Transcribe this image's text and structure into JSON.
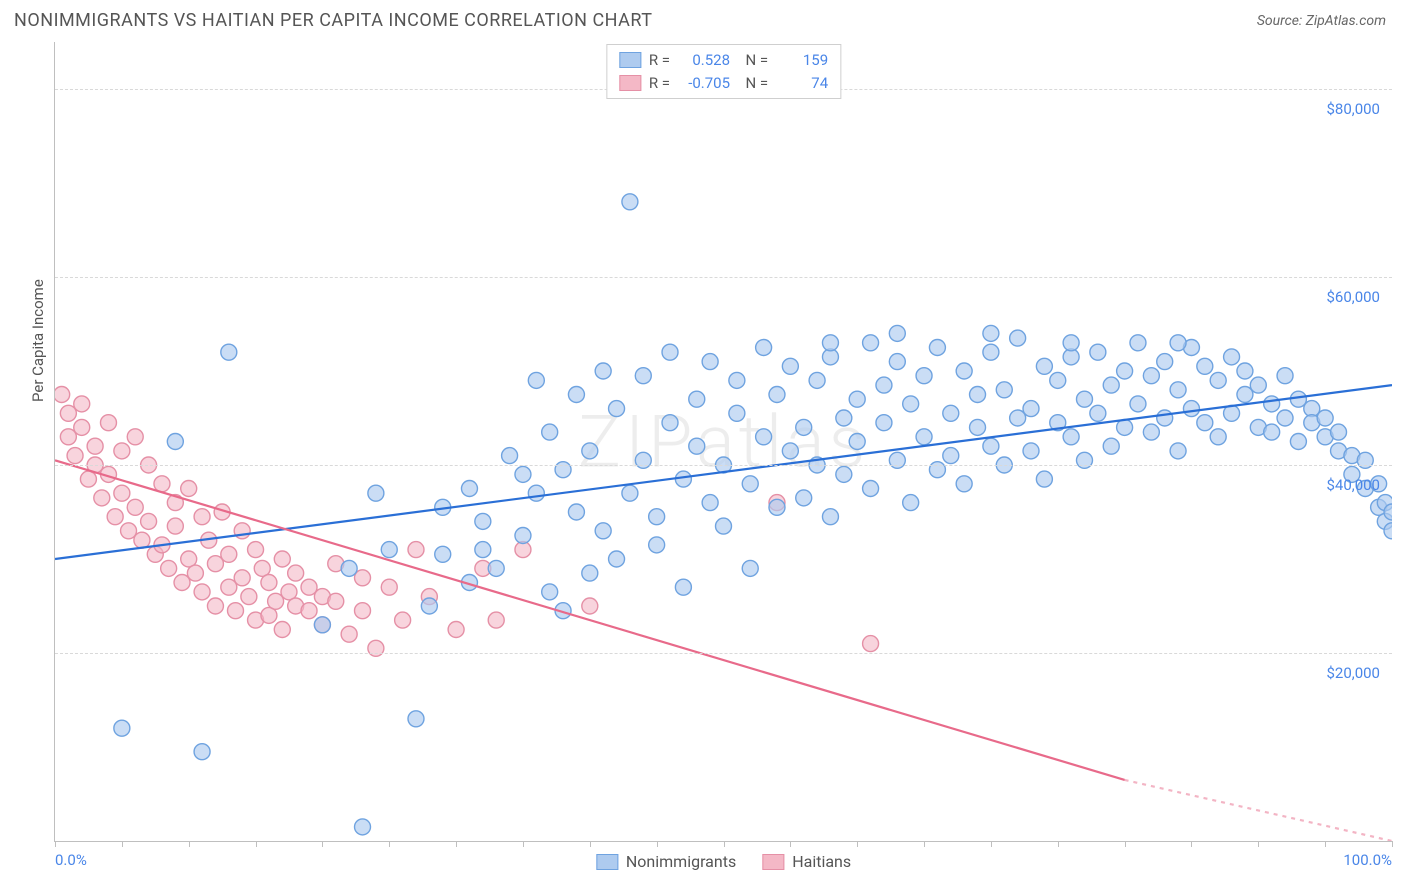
{
  "title": "NONIMMIGRANTS VS HAITIAN PER CAPITA INCOME CORRELATION CHART",
  "source_label": "Source: ZipAtlas.com",
  "watermark": "ZIPatlas",
  "ylabel": "Per Capita Income",
  "chart": {
    "type": "scatter",
    "xlim": [
      0,
      100
    ],
    "ylim": [
      0,
      85000
    ],
    "x_tick_positions": [
      0,
      5,
      10,
      15,
      20,
      25,
      30,
      35,
      40,
      45,
      50,
      55,
      60,
      65,
      70,
      75,
      80,
      85,
      90,
      95,
      100
    ],
    "x_labeled_ticks": {
      "0": "0.0%",
      "100": "100.0%"
    },
    "y_gridlines": [
      0,
      20000,
      40000,
      60000,
      80000
    ],
    "y_tick_labels": {
      "20000": "$20,000",
      "40000": "$40,000",
      "60000": "$60,000",
      "80000": "$80,000"
    },
    "grid_color": "#d9d9d9",
    "axis_color": "#bfbfbf",
    "background_color": "#ffffff",
    "marker_radius": 8,
    "marker_stroke_width": 1.4,
    "trend_line_width": 2.2,
    "series": [
      {
        "name": "Nonimmigrants",
        "fill": "#aecbef",
        "fill_opacity": 0.65,
        "stroke": "#6fa3e0",
        "line_color": "#2a6fd6",
        "R": "0.528",
        "N": "159",
        "trend": {
          "x1": 0,
          "y1": 30000,
          "x2": 100,
          "y2": 48500
        },
        "points": [
          [
            5,
            12000
          ],
          [
            11,
            9500
          ],
          [
            9,
            42500
          ],
          [
            13,
            52000
          ],
          [
            23,
            1500
          ],
          [
            20,
            23000
          ],
          [
            22,
            29000
          ],
          [
            25,
            31000
          ],
          [
            27,
            13000
          ],
          [
            29,
            35500
          ],
          [
            29,
            30500
          ],
          [
            31,
            37500
          ],
          [
            31,
            27500
          ],
          [
            32,
            34000
          ],
          [
            33,
            29000
          ],
          [
            34,
            41000
          ],
          [
            35,
            32500
          ],
          [
            36,
            49000
          ],
          [
            36,
            37000
          ],
          [
            37,
            26500
          ],
          [
            37,
            43500
          ],
          [
            38,
            24500
          ],
          [
            38,
            39500
          ],
          [
            39,
            35000
          ],
          [
            39,
            47500
          ],
          [
            40,
            28500
          ],
          [
            40,
            41500
          ],
          [
            41,
            50000
          ],
          [
            41,
            33000
          ],
          [
            42,
            46000
          ],
          [
            42,
            30000
          ],
          [
            43,
            68000
          ],
          [
            43,
            37000
          ],
          [
            44,
            49500
          ],
          [
            44,
            40500
          ],
          [
            45,
            31500
          ],
          [
            45,
            34500
          ],
          [
            46,
            44500
          ],
          [
            46,
            52000
          ],
          [
            47,
            38500
          ],
          [
            47,
            27000
          ],
          [
            48,
            42000
          ],
          [
            48,
            47000
          ],
          [
            49,
            36000
          ],
          [
            49,
            51000
          ],
          [
            50,
            40000
          ],
          [
            50,
            33500
          ],
          [
            51,
            45500
          ],
          [
            51,
            49000
          ],
          [
            52,
            38000
          ],
          [
            52,
            29000
          ],
          [
            53,
            43000
          ],
          [
            53,
            52500
          ],
          [
            54,
            35500
          ],
          [
            54,
            47500
          ],
          [
            55,
            41500
          ],
          [
            55,
            50500
          ],
          [
            56,
            36500
          ],
          [
            56,
            44000
          ],
          [
            57,
            40000
          ],
          [
            57,
            49000
          ],
          [
            58,
            51500
          ],
          [
            58,
            34500
          ],
          [
            59,
            45000
          ],
          [
            59,
            39000
          ],
          [
            60,
            47000
          ],
          [
            60,
            42500
          ],
          [
            61,
            53000
          ],
          [
            61,
            37500
          ],
          [
            62,
            48500
          ],
          [
            62,
            44500
          ],
          [
            63,
            40500
          ],
          [
            63,
            51000
          ],
          [
            64,
            36000
          ],
          [
            64,
            46500
          ],
          [
            65,
            49500
          ],
          [
            65,
            43000
          ],
          [
            66,
            39500
          ],
          [
            66,
            52500
          ],
          [
            67,
            45500
          ],
          [
            67,
            41000
          ],
          [
            68,
            50000
          ],
          [
            68,
            38000
          ],
          [
            69,
            47500
          ],
          [
            69,
            44000
          ],
          [
            70,
            42000
          ],
          [
            70,
            52000
          ],
          [
            71,
            40000
          ],
          [
            71,
            48000
          ],
          [
            72,
            53500
          ],
          [
            72,
            45000
          ],
          [
            73,
            46000
          ],
          [
            73,
            41500
          ],
          [
            74,
            50500
          ],
          [
            74,
            38500
          ],
          [
            75,
            49000
          ],
          [
            75,
            44500
          ],
          [
            76,
            43000
          ],
          [
            76,
            51500
          ],
          [
            77,
            47000
          ],
          [
            77,
            40500
          ],
          [
            78,
            52000
          ],
          [
            78,
            45500
          ],
          [
            79,
            48500
          ],
          [
            79,
            42000
          ],
          [
            80,
            50000
          ],
          [
            80,
            44000
          ],
          [
            81,
            53000
          ],
          [
            81,
            46500
          ],
          [
            82,
            49500
          ],
          [
            82,
            43500
          ],
          [
            83,
            51000
          ],
          [
            83,
            45000
          ],
          [
            84,
            48000
          ],
          [
            84,
            41500
          ],
          [
            85,
            52500
          ],
          [
            85,
            46000
          ],
          [
            86,
            50500
          ],
          [
            86,
            44500
          ],
          [
            87,
            49000
          ],
          [
            87,
            43000
          ],
          [
            88,
            51500
          ],
          [
            88,
            45500
          ],
          [
            89,
            47500
          ],
          [
            89,
            50000
          ],
          [
            90,
            44000
          ],
          [
            90,
            48500
          ],
          [
            91,
            46500
          ],
          [
            91,
            43500
          ],
          [
            92,
            49500
          ],
          [
            92,
            45000
          ],
          [
            93,
            47000
          ],
          [
            93,
            42500
          ],
          [
            94,
            46000
          ],
          [
            94,
            44500
          ],
          [
            95,
            45000
          ],
          [
            95,
            43000
          ],
          [
            96,
            43500
          ],
          [
            96,
            41500
          ],
          [
            97,
            41000
          ],
          [
            97,
            39000
          ],
          [
            98,
            40500
          ],
          [
            98,
            37500
          ],
          [
            99,
            38000
          ],
          [
            99,
            35500
          ],
          [
            99.5,
            36000
          ],
          [
            99.5,
            34000
          ],
          [
            100,
            35000
          ],
          [
            100,
            33000
          ],
          [
            58,
            53000
          ],
          [
            63,
            54000
          ],
          [
            70,
            54000
          ],
          [
            76,
            53000
          ],
          [
            84,
            53000
          ],
          [
            24,
            37000
          ],
          [
            28,
            25000
          ],
          [
            32,
            31000
          ],
          [
            35,
            39000
          ]
        ]
      },
      {
        "name": "Haitians",
        "fill": "#f4b8c6",
        "fill_opacity": 0.6,
        "stroke": "#e590a6",
        "line_color": "#e86a8a",
        "R": "-0.705",
        "N": "74",
        "trend": {
          "x1": 0,
          "y1": 40500,
          "x2": 80,
          "y2": 6500
        },
        "trend_extend": {
          "x1": 80,
          "y1": 6500,
          "x2": 100,
          "y2": 0
        },
        "points": [
          [
            0.5,
            47500
          ],
          [
            1,
            43000
          ],
          [
            1,
            45500
          ],
          [
            1.5,
            41000
          ],
          [
            2,
            44000
          ],
          [
            2,
            46500
          ],
          [
            2.5,
            38500
          ],
          [
            3,
            42000
          ],
          [
            3,
            40000
          ],
          [
            3.5,
            36500
          ],
          [
            4,
            44500
          ],
          [
            4,
            39000
          ],
          [
            4.5,
            34500
          ],
          [
            5,
            41500
          ],
          [
            5,
            37000
          ],
          [
            5.5,
            33000
          ],
          [
            6,
            43000
          ],
          [
            6,
            35500
          ],
          [
            6.5,
            32000
          ],
          [
            7,
            40000
          ],
          [
            7,
            34000
          ],
          [
            7.5,
            30500
          ],
          [
            8,
            38000
          ],
          [
            8,
            31500
          ],
          [
            8.5,
            29000
          ],
          [
            9,
            36000
          ],
          [
            9,
            33500
          ],
          [
            9.5,
            27500
          ],
          [
            10,
            37500
          ],
          [
            10,
            30000
          ],
          [
            10.5,
            28500
          ],
          [
            11,
            34500
          ],
          [
            11,
            26500
          ],
          [
            11.5,
            32000
          ],
          [
            12,
            29500
          ],
          [
            12,
            25000
          ],
          [
            12.5,
            35000
          ],
          [
            13,
            30500
          ],
          [
            13,
            27000
          ],
          [
            13.5,
            24500
          ],
          [
            14,
            33000
          ],
          [
            14,
            28000
          ],
          [
            14.5,
            26000
          ],
          [
            15,
            31000
          ],
          [
            15,
            23500
          ],
          [
            15.5,
            29000
          ],
          [
            16,
            27500
          ],
          [
            16,
            24000
          ],
          [
            16.5,
            25500
          ],
          [
            17,
            30000
          ],
          [
            17,
            22500
          ],
          [
            17.5,
            26500
          ],
          [
            18,
            28500
          ],
          [
            18,
            25000
          ],
          [
            19,
            24500
          ],
          [
            19,
            27000
          ],
          [
            20,
            26000
          ],
          [
            20,
            23000
          ],
          [
            21,
            29500
          ],
          [
            21,
            25500
          ],
          [
            22,
            22000
          ],
          [
            23,
            28000
          ],
          [
            23,
            24500
          ],
          [
            24,
            20500
          ],
          [
            25,
            27000
          ],
          [
            26,
            23500
          ],
          [
            27,
            31000
          ],
          [
            28,
            26000
          ],
          [
            30,
            22500
          ],
          [
            32,
            29000
          ],
          [
            33,
            23500
          ],
          [
            35,
            31000
          ],
          [
            40,
            25000
          ],
          [
            54,
            36000
          ],
          [
            61,
            21000
          ]
        ]
      }
    ]
  },
  "bottom_legend": [
    {
      "label": "Nonimmigrants",
      "fill": "#aecbef",
      "stroke": "#6fa3e0"
    },
    {
      "label": "Haitians",
      "fill": "#f4b8c6",
      "stroke": "#e590a6"
    }
  ]
}
